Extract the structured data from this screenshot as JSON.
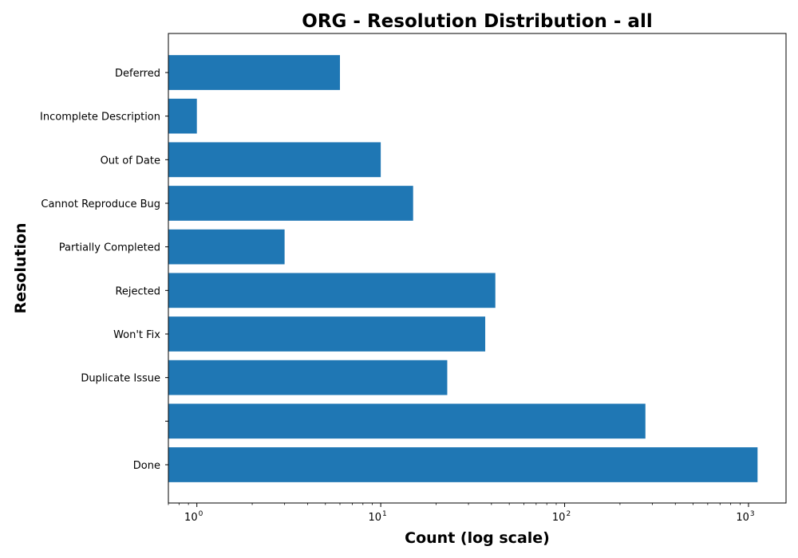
{
  "chart_data": {
    "type": "bar",
    "orientation": "horizontal",
    "title": "ORG - Resolution Distribution - all",
    "xlabel": "Count (log scale)",
    "ylabel": "Resolution",
    "x_scale": "log",
    "xlim": [
      0.7,
      1600
    ],
    "x_ticks": [
      {
        "value": 1,
        "base": "10",
        "exp": "0"
      },
      {
        "value": 10,
        "base": "10",
        "exp": "1"
      },
      {
        "value": 100,
        "base": "10",
        "exp": "2"
      },
      {
        "value": 1000,
        "base": "10",
        "exp": "3"
      }
    ],
    "categories": [
      "Done",
      "",
      "Duplicate Issue",
      "Won't Fix",
      "Rejected",
      "Partially Completed",
      "Cannot Reproduce Bug",
      "Out of Date",
      "Incomplete Description",
      "Deferred"
    ],
    "values": [
      1120,
      275,
      23,
      37,
      42,
      3,
      15,
      10,
      1,
      6
    ],
    "bar_color": "#1f77b4",
    "grid": false
  }
}
